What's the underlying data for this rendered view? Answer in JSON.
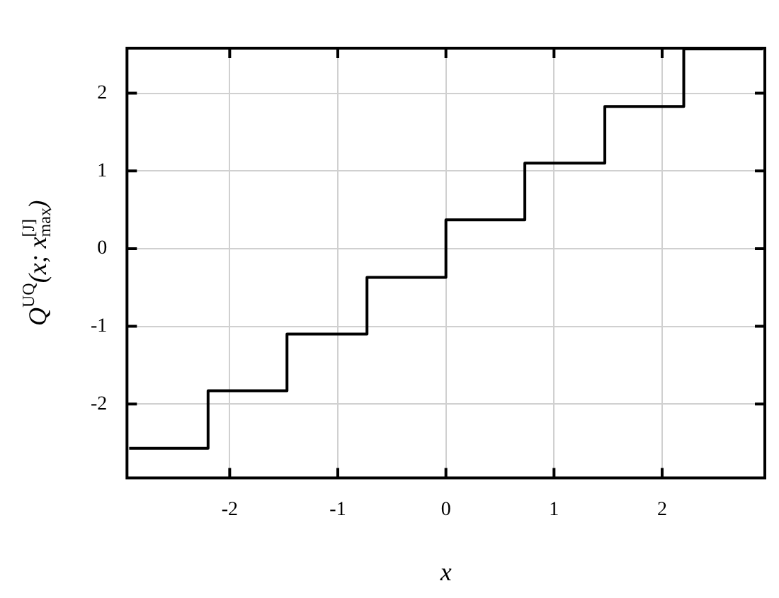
{
  "chart_data": {
    "type": "step",
    "xlabel": "x",
    "ylabel": "Q$^{UQ}$(x; x$_{max}$$^{[J]}$)",
    "x": [
      -2.93,
      -2.2,
      -1.47,
      -0.73,
      0,
      0.73,
      1.47,
      2.2,
      2.93
    ],
    "series": [
      {
        "color": "#000000",
        "values": [
          -2.57,
          -1.83,
          -1.1,
          -0.37,
          0.37,
          1.1,
          1.83,
          2.57,
          2.57
        ]
      }
    ],
    "xlim": [
      -2.95,
      2.95
    ],
    "ylim": [
      -2.95,
      2.58
    ],
    "xticks": [
      -2,
      -1,
      0,
      1,
      2
    ],
    "yticks": [
      -2,
      -1,
      0,
      1,
      2
    ],
    "grid": true,
    "legend": false,
    "marker": "none",
    "line_style": "solid"
  }
}
